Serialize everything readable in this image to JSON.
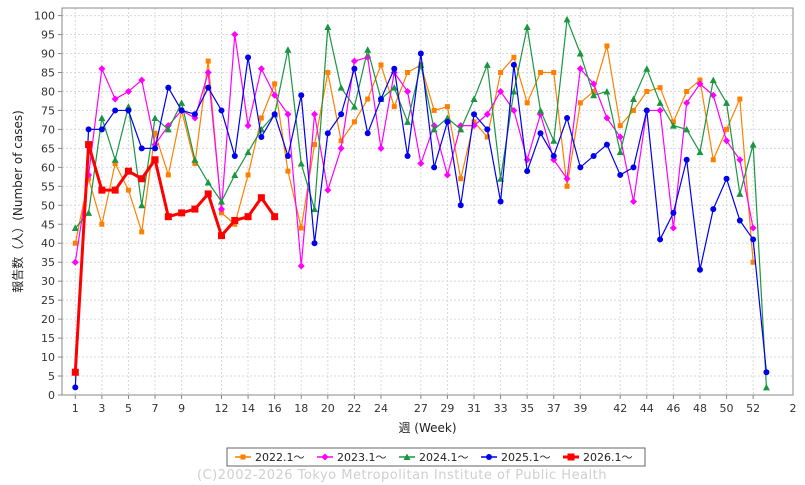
{
  "chart_data": {
    "type": "line",
    "xlabel": "週 (Week)",
    "ylabel": "報告数（人）(Number of cases)",
    "xlim": [
      0,
      55
    ],
    "ylim": [
      0,
      102
    ],
    "x_ticks": [
      1,
      3,
      5,
      7,
      9,
      12,
      14,
      16,
      18,
      20,
      22,
      24,
      27,
      29,
      31,
      33,
      35,
      37,
      39,
      42,
      44,
      46,
      48,
      50,
      52
    ],
    "x_tick_labels": [
      "1",
      "3",
      "5",
      "7",
      "9",
      "12",
      "14",
      "16",
      "18",
      "20",
      "22",
      "24",
      "27",
      "29",
      "31",
      "33",
      "35",
      "37",
      "39",
      "42",
      "44",
      "46",
      "48",
      "50",
      "52"
    ],
    "x_end_label": "2",
    "y_ticks": [
      0,
      5,
      10,
      15,
      20,
      25,
      30,
      35,
      40,
      45,
      50,
      55,
      60,
      65,
      70,
      75,
      80,
      85,
      90,
      95,
      100
    ],
    "grid": true,
    "legend_position": "bottom",
    "series": [
      {
        "name": "2022.1〜",
        "color": "#ff8000",
        "marker": "square",
        "values": [
          40,
          57,
          45,
          61,
          54,
          43,
          69,
          58,
          75,
          61,
          88,
          48,
          45,
          58,
          73,
          82,
          59,
          44,
          66,
          85,
          67,
          72,
          78,
          87,
          76,
          85,
          87,
          75,
          76,
          57,
          72,
          68,
          85,
          89,
          77,
          85,
          85,
          55,
          77,
          80,
          92,
          71,
          75,
          80,
          81,
          72,
          80,
          83,
          62,
          70,
          78,
          35
        ]
      },
      {
        "name": "2023.1〜",
        "color": "#ff00ff",
        "marker": "diamond",
        "values": [
          35,
          58,
          86,
          78,
          80,
          83,
          66,
          71,
          75,
          73,
          85,
          49,
          95,
          71,
          86,
          79,
          74,
          34,
          74,
          54,
          65,
          88,
          89,
          65,
          85,
          80,
          61,
          71,
          58,
          71,
          71,
          74,
          80,
          75,
          62,
          74,
          62,
          57,
          86,
          82,
          73,
          68,
          51,
          75,
          75,
          44,
          77,
          82,
          79,
          67,
          62,
          44
        ]
      },
      {
        "name": "2024.1〜",
        "color": "#1a9641",
        "marker": "triangle",
        "values": [
          44,
          48,
          73,
          62,
          76,
          50,
          73,
          70,
          77,
          62,
          56,
          51,
          58,
          64,
          70,
          74,
          91,
          61,
          49,
          97,
          81,
          76,
          91,
          78,
          81,
          72,
          87,
          70,
          73,
          70,
          78,
          87,
          57,
          80,
          97,
          75,
          67,
          99,
          90,
          79,
          80,
          64,
          78,
          86,
          77,
          71,
          70,
          64,
          83,
          77,
          53,
          66,
          2
        ]
      },
      {
        "name": "2025.1〜",
        "color": "#0000ee",
        "marker": "circle",
        "values": [
          2,
          70,
          70,
          75,
          75,
          65,
          65,
          81,
          75,
          74,
          81,
          75,
          63,
          89,
          68,
          74,
          63,
          79,
          40,
          69,
          74,
          86,
          69,
          78,
          86,
          63,
          90,
          60,
          72,
          50,
          74,
          70,
          51,
          87,
          59,
          69,
          63,
          73,
          60,
          63,
          66,
          58,
          60,
          75,
          41,
          48,
          62,
          33,
          49,
          57,
          46,
          41,
          6
        ]
      },
      {
        "name": "2026.1〜",
        "color": "#ff0000",
        "marker": "square-bold",
        "values": [
          6,
          66,
          54,
          54,
          59,
          57,
          62,
          47,
          48,
          49,
          53,
          42,
          46,
          47,
          52,
          47
        ]
      }
    ],
    "credit": "(C)2002-2026 Tokyo Metropolitan Institute of Public Health"
  }
}
